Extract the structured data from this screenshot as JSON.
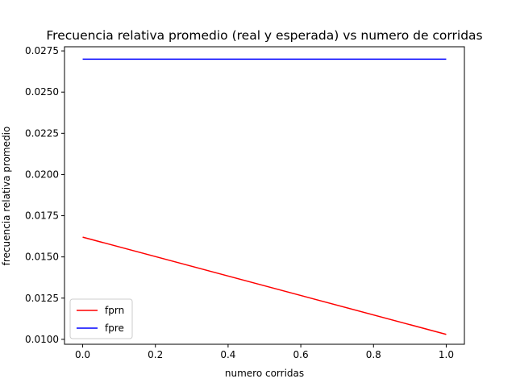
{
  "chart_data": {
    "type": "line",
    "title": "Frecuencia relativa promedio (real y esperada) vs numero de corridas",
    "xlabel": "numero corridas",
    "ylabel": "frecuencia relativa promedio",
    "xlim": [
      -0.05,
      1.05
    ],
    "ylim": [
      0.0097,
      0.02775
    ],
    "xticks": [
      0.0,
      0.2,
      0.4,
      0.6,
      0.8,
      1.0
    ],
    "xtick_labels": [
      "0.0",
      "0.2",
      "0.4",
      "0.6",
      "0.8",
      "1.0"
    ],
    "yticks": [
      0.01,
      0.0125,
      0.015,
      0.0175,
      0.02,
      0.0225,
      0.025,
      0.0275
    ],
    "ytick_labels": [
      "0.0100",
      "0.0125",
      "0.0150",
      "0.0175",
      "0.0200",
      "0.0225",
      "0.0250",
      "0.0275"
    ],
    "grid": false,
    "legend_position": "lower-left",
    "series": [
      {
        "name": "fprn",
        "color": "#ff0000",
        "x": [
          0,
          1
        ],
        "y": [
          0.0162,
          0.0103
        ]
      },
      {
        "name": "fpre",
        "color": "#0000ff",
        "x": [
          0,
          1
        ],
        "y": [
          0.027,
          0.027
        ]
      }
    ]
  }
}
